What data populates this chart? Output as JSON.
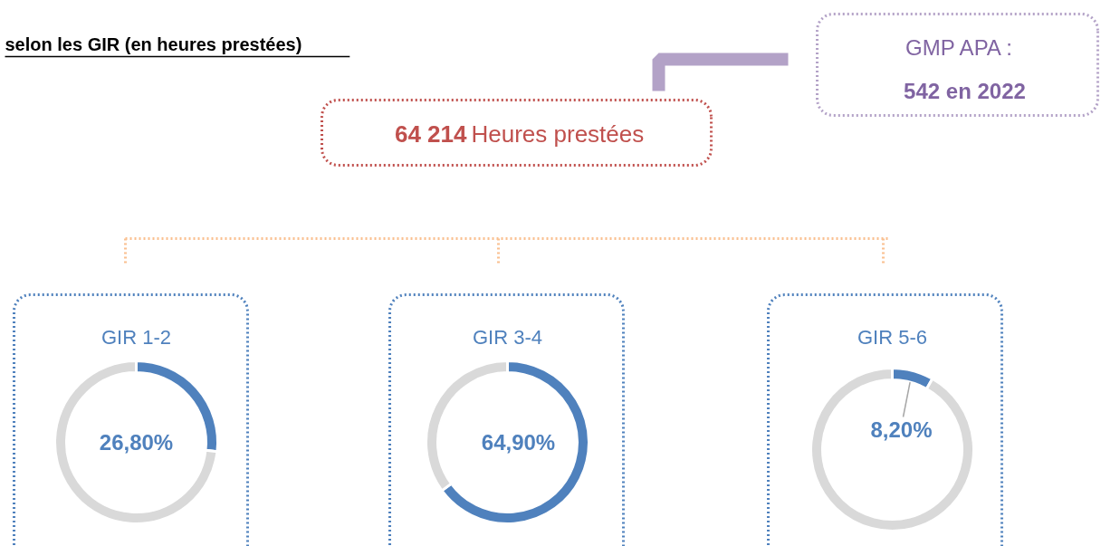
{
  "chart_data": [
    {
      "type": "other",
      "title": "selon les GIR (en heures prestées)",
      "annotations": [
        "64 214",
        "Heures prestées",
        "GMP APA :",
        "542 en 2022"
      ]
    },
    {
      "type": "donut",
      "title": "GIR 1-2",
      "categories": [
        null,
        null
      ],
      "values": [
        26.8,
        73.2
      ],
      "colors": [
        "#4f81bd",
        "#d9d9d9"
      ],
      "value_labels": [
        "26,80%",
        null
      ]
    },
    {
      "type": "donut",
      "title": "GIR 3-4",
      "categories": [
        null,
        null
      ],
      "values": [
        64.9,
        35.1
      ],
      "colors": [
        "#4f81bd",
        "#d9d9d9"
      ],
      "value_labels": [
        "64,90%",
        null
      ]
    },
    {
      "type": "donut",
      "title": "GIR 5-6",
      "categories": [
        null,
        null
      ],
      "values": [
        8.2,
        91.8
      ],
      "colors": [
        "#4f81bd",
        "#d9d9d9"
      ],
      "value_labels": [
        "8,20%",
        null
      ]
    }
  ]
}
